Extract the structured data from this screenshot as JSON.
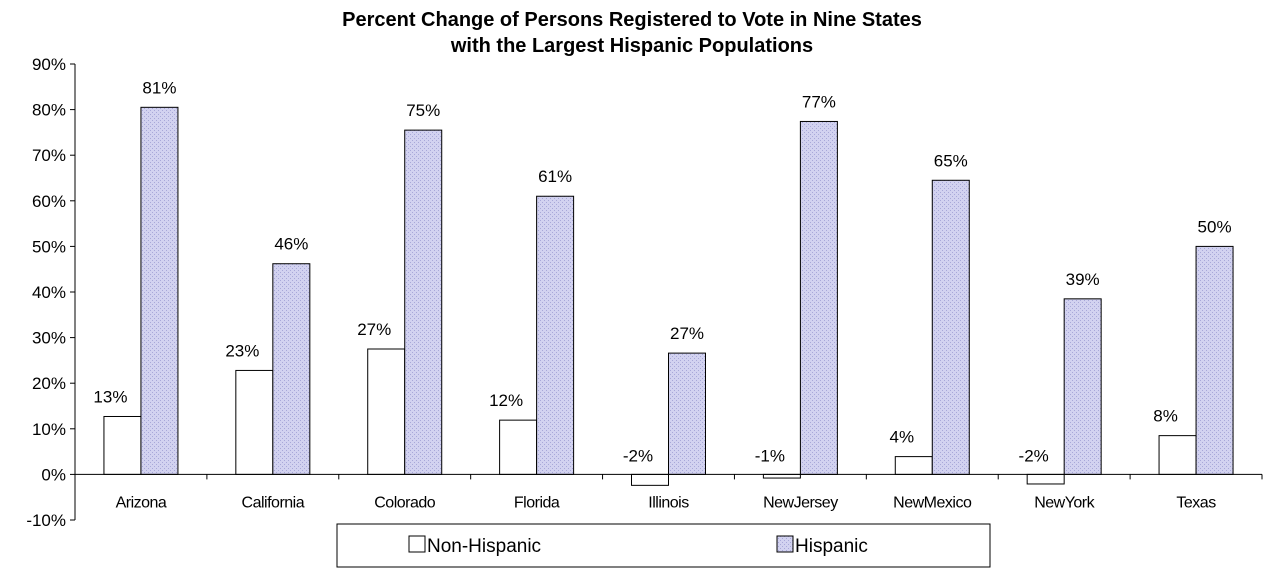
{
  "chart_data": {
    "type": "bar",
    "title_lines": [
      "Percent Change of Persons Registered to Vote in Nine States",
      "with the Largest Hispanic Populations"
    ],
    "xlabel": "",
    "ylabel": "",
    "categories": [
      "Arizona",
      "California",
      "Colorado",
      "Florida",
      "Illinois",
      "NewJersey",
      "NewMexico",
      "NewYork",
      "Texas"
    ],
    "ylim": [
      -10,
      90
    ],
    "y_ticks": [
      -10,
      0,
      10,
      20,
      30,
      40,
      50,
      60,
      70,
      80,
      90
    ],
    "y_tick_labels": [
      "-10%",
      "0%",
      "10%",
      "20%",
      "30%",
      "40%",
      "50%",
      "60%",
      "70%",
      "80%",
      "90%"
    ],
    "grid": false,
    "legend_position": "bottom",
    "series": [
      {
        "name": "Non-Hispanic",
        "color": "#ffffff",
        "values": [
          12.7,
          22.8,
          27.5,
          11.9,
          -2.4,
          -0.8,
          3.9,
          -2.1,
          8.5
        ],
        "labels": [
          "13%",
          "23%",
          "27%",
          "12%",
          "-2%",
          "-1%",
          "4%",
          "-2%",
          "8%"
        ]
      },
      {
        "name": "Hispanic",
        "color": "#c8c8ec",
        "values": [
          80.5,
          46.2,
          75.5,
          61.0,
          26.6,
          77.4,
          64.5,
          38.5,
          50.0
        ],
        "labels": [
          "81%",
          "46%",
          "75%",
          "61%",
          "27%",
          "77%",
          "65%",
          "39%",
          "50%"
        ]
      }
    ]
  }
}
